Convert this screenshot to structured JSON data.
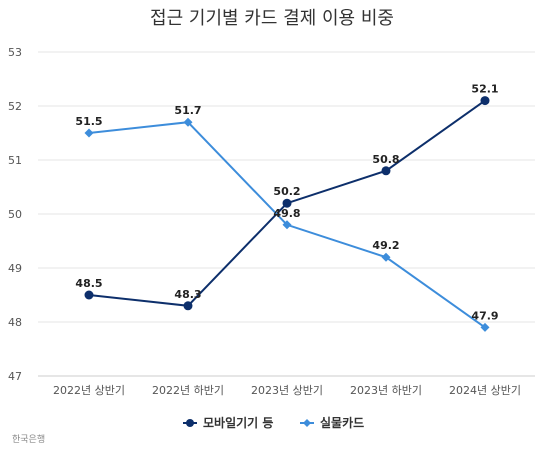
{
  "chart_data": {
    "type": "line",
    "title": "접근 기기별 카드 결제 이용 비중",
    "categories": [
      "2022년 상반기",
      "2022년 하반기",
      "2023년 상반기",
      "2023년 하반기",
      "2024년 상반기"
    ],
    "ylim": [
      47,
      53
    ],
    "yticks": [
      47,
      48,
      49,
      50,
      51,
      52,
      53
    ],
    "grid": true,
    "legend_position": "bottom",
    "series": [
      {
        "name": "모바일기기 등",
        "values": [
          48.5,
          48.3,
          50.2,
          50.8,
          52.1
        ],
        "labels": [
          "48.5",
          "48.3",
          "50.2",
          "50.8",
          "52.1"
        ],
        "color": "#0d2f6b",
        "marker": "circle"
      },
      {
        "name": "실물카드",
        "values": [
          51.5,
          51.7,
          49.8,
          49.2,
          47.9
        ],
        "labels": [
          "51.5",
          "51.7",
          "49.8",
          "49.2",
          "47.9"
        ],
        "color": "#3d8ddb",
        "marker": "diamond"
      }
    ]
  },
  "source": "한국은행"
}
